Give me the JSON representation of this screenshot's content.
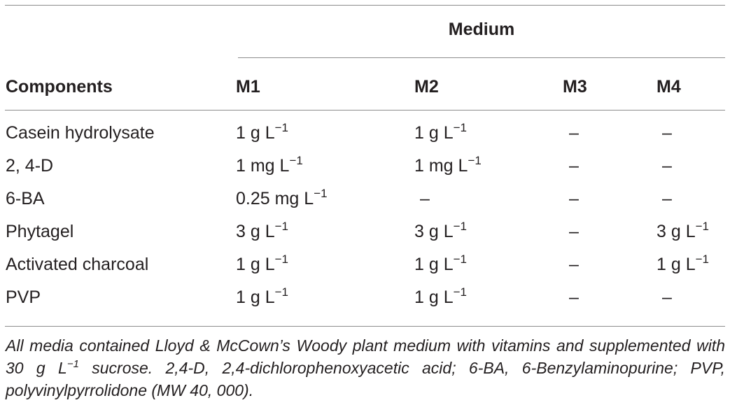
{
  "table": {
    "group_header": "Medium",
    "columns": [
      "Components",
      "M1",
      "M2",
      "M3",
      "M4"
    ],
    "rows": [
      {
        "component": "Casein hydrolysate",
        "values": [
          {
            "text": "1 g L",
            "sup": "−1"
          },
          {
            "text": "1 g L",
            "sup": "−1"
          },
          {
            "text": "–",
            "sup": ""
          },
          {
            "text": "–",
            "sup": ""
          }
        ]
      },
      {
        "component": "2, 4-D",
        "values": [
          {
            "text": "1 mg L",
            "sup": "−1"
          },
          {
            "text": "1 mg L",
            "sup": "−1"
          },
          {
            "text": "–",
            "sup": ""
          },
          {
            "text": "–",
            "sup": ""
          }
        ]
      },
      {
        "component": "6-BA",
        "values": [
          {
            "text": "0.25 mg L",
            "sup": "−1"
          },
          {
            "text": "–",
            "sup": ""
          },
          {
            "text": "–",
            "sup": ""
          },
          {
            "text": "–",
            "sup": ""
          }
        ]
      },
      {
        "component": "Phytagel",
        "values": [
          {
            "text": "3 g L",
            "sup": "−1"
          },
          {
            "text": "3 g L",
            "sup": "−1"
          },
          {
            "text": "–",
            "sup": ""
          },
          {
            "text": "3 g L",
            "sup": "−1"
          }
        ]
      },
      {
        "component": "Activated charcoal",
        "values": [
          {
            "text": "1 g L",
            "sup": "−1"
          },
          {
            "text": "1 g L",
            "sup": "−1"
          },
          {
            "text": "–",
            "sup": ""
          },
          {
            "text": "1 g L",
            "sup": "−1"
          }
        ]
      },
      {
        "component": "PVP",
        "values": [
          {
            "text": "1 g L",
            "sup": "−1"
          },
          {
            "text": "1 g L",
            "sup": "−1"
          },
          {
            "text": "–",
            "sup": ""
          },
          {
            "text": "–",
            "sup": ""
          }
        ]
      }
    ]
  },
  "footnote": {
    "part1": "All media contained Lloyd & McCown’s Woody plant medium with vitamins and supplemented with 30 g L",
    "sup": "−1",
    "part2": " sucrose. 2,4-D, 2,4-dichlorophenoxyacetic acid; 6-BA, 6-Benzylaminopurine; PVP, polyvinylpyrrolidone (MW 40, 000)."
  }
}
